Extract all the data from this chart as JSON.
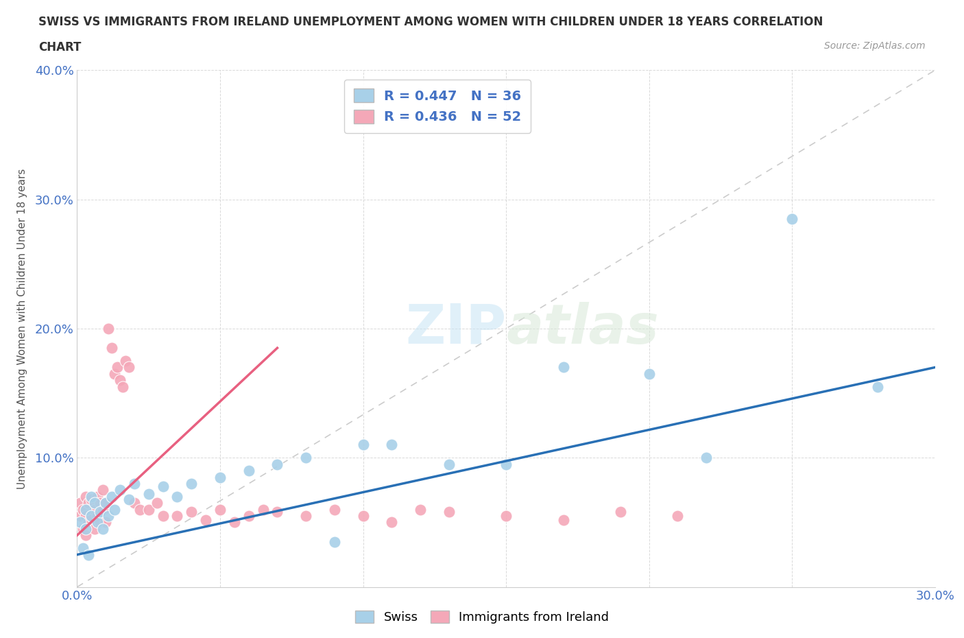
{
  "title_line1": "SWISS VS IMMIGRANTS FROM IRELAND UNEMPLOYMENT AMONG WOMEN WITH CHILDREN UNDER 18 YEARS CORRELATION",
  "title_line2": "CHART",
  "source": "Source: ZipAtlas.com",
  "ylabel": "Unemployment Among Women with Children Under 18 years",
  "xlim": [
    0.0,
    0.3
  ],
  "ylim": [
    0.0,
    0.4
  ],
  "swiss_color": "#a8d0e8",
  "ireland_color": "#f4a8b8",
  "swiss_R": 0.447,
  "swiss_N": 36,
  "ireland_R": 0.436,
  "ireland_N": 52,
  "swiss_trend_color": "#2970b5",
  "ireland_trend_color": "#e86080",
  "ref_line_color": "#cccccc",
  "background_color": "#ffffff",
  "watermark_zip": "ZIP",
  "watermark_atlas": "atlas",
  "legend_box_color": "#f0f8ff",
  "swiss_x": [
    0.001,
    0.002,
    0.003,
    0.003,
    0.004,
    0.005,
    0.005,
    0.006,
    0.007,
    0.008,
    0.009,
    0.01,
    0.011,
    0.012,
    0.013,
    0.015,
    0.018,
    0.02,
    0.025,
    0.03,
    0.035,
    0.04,
    0.05,
    0.06,
    0.07,
    0.08,
    0.09,
    0.1,
    0.11,
    0.13,
    0.15,
    0.17,
    0.2,
    0.22,
    0.25,
    0.28
  ],
  "swiss_y": [
    0.05,
    0.03,
    0.06,
    0.045,
    0.025,
    0.07,
    0.055,
    0.065,
    0.05,
    0.058,
    0.045,
    0.065,
    0.055,
    0.07,
    0.06,
    0.075,
    0.068,
    0.08,
    0.072,
    0.078,
    0.07,
    0.08,
    0.085,
    0.09,
    0.095,
    0.1,
    0.035,
    0.11,
    0.11,
    0.095,
    0.095,
    0.17,
    0.165,
    0.1,
    0.285,
    0.155
  ],
  "ireland_x": [
    0.001,
    0.001,
    0.002,
    0.002,
    0.003,
    0.003,
    0.003,
    0.004,
    0.004,
    0.005,
    0.005,
    0.006,
    0.006,
    0.007,
    0.007,
    0.008,
    0.008,
    0.009,
    0.009,
    0.01,
    0.01,
    0.011,
    0.012,
    0.013,
    0.014,
    0.015,
    0.016,
    0.017,
    0.018,
    0.02,
    0.022,
    0.025,
    0.028,
    0.03,
    0.035,
    0.04,
    0.045,
    0.05,
    0.055,
    0.06,
    0.065,
    0.07,
    0.08,
    0.09,
    0.1,
    0.11,
    0.12,
    0.13,
    0.15,
    0.17,
    0.19,
    0.21
  ],
  "ireland_y": [
    0.065,
    0.055,
    0.06,
    0.045,
    0.07,
    0.055,
    0.04,
    0.065,
    0.05,
    0.068,
    0.055,
    0.06,
    0.045,
    0.07,
    0.055,
    0.065,
    0.05,
    0.075,
    0.06,
    0.065,
    0.05,
    0.2,
    0.185,
    0.165,
    0.17,
    0.16,
    0.155,
    0.175,
    0.17,
    0.065,
    0.06,
    0.06,
    0.065,
    0.055,
    0.055,
    0.058,
    0.052,
    0.06,
    0.05,
    0.055,
    0.06,
    0.058,
    0.055,
    0.06,
    0.055,
    0.05,
    0.06,
    0.058,
    0.055,
    0.052,
    0.058,
    0.055
  ],
  "swiss_trend_x": [
    0.0,
    0.3
  ],
  "swiss_trend_y": [
    0.025,
    0.17
  ],
  "ireland_trend_x": [
    0.0,
    0.07
  ],
  "ireland_trend_y": [
    0.04,
    0.185
  ]
}
